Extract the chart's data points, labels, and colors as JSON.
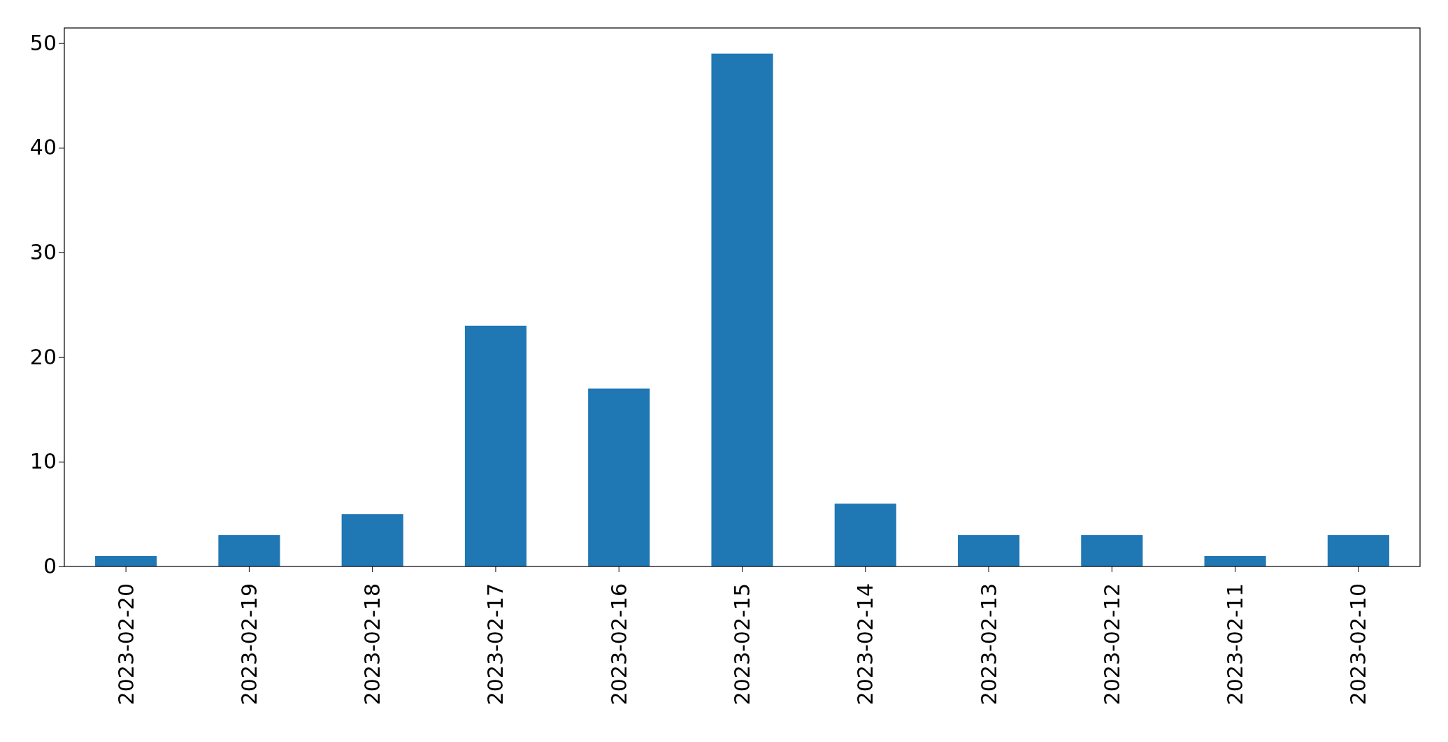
{
  "chart_data": {
    "type": "bar",
    "categories": [
      "2023-02-20",
      "2023-02-19",
      "2023-02-18",
      "2023-02-17",
      "2023-02-16",
      "2023-02-15",
      "2023-02-14",
      "2023-02-13",
      "2023-02-12",
      "2023-02-11",
      "2023-02-10"
    ],
    "values": [
      1,
      3,
      5,
      23,
      17,
      49,
      6,
      3,
      3,
      1,
      3
    ],
    "color": "#1f77b4",
    "ylim": [
      0,
      51.45
    ],
    "yticks": [
      0,
      10,
      20,
      30,
      40,
      50
    ]
  }
}
